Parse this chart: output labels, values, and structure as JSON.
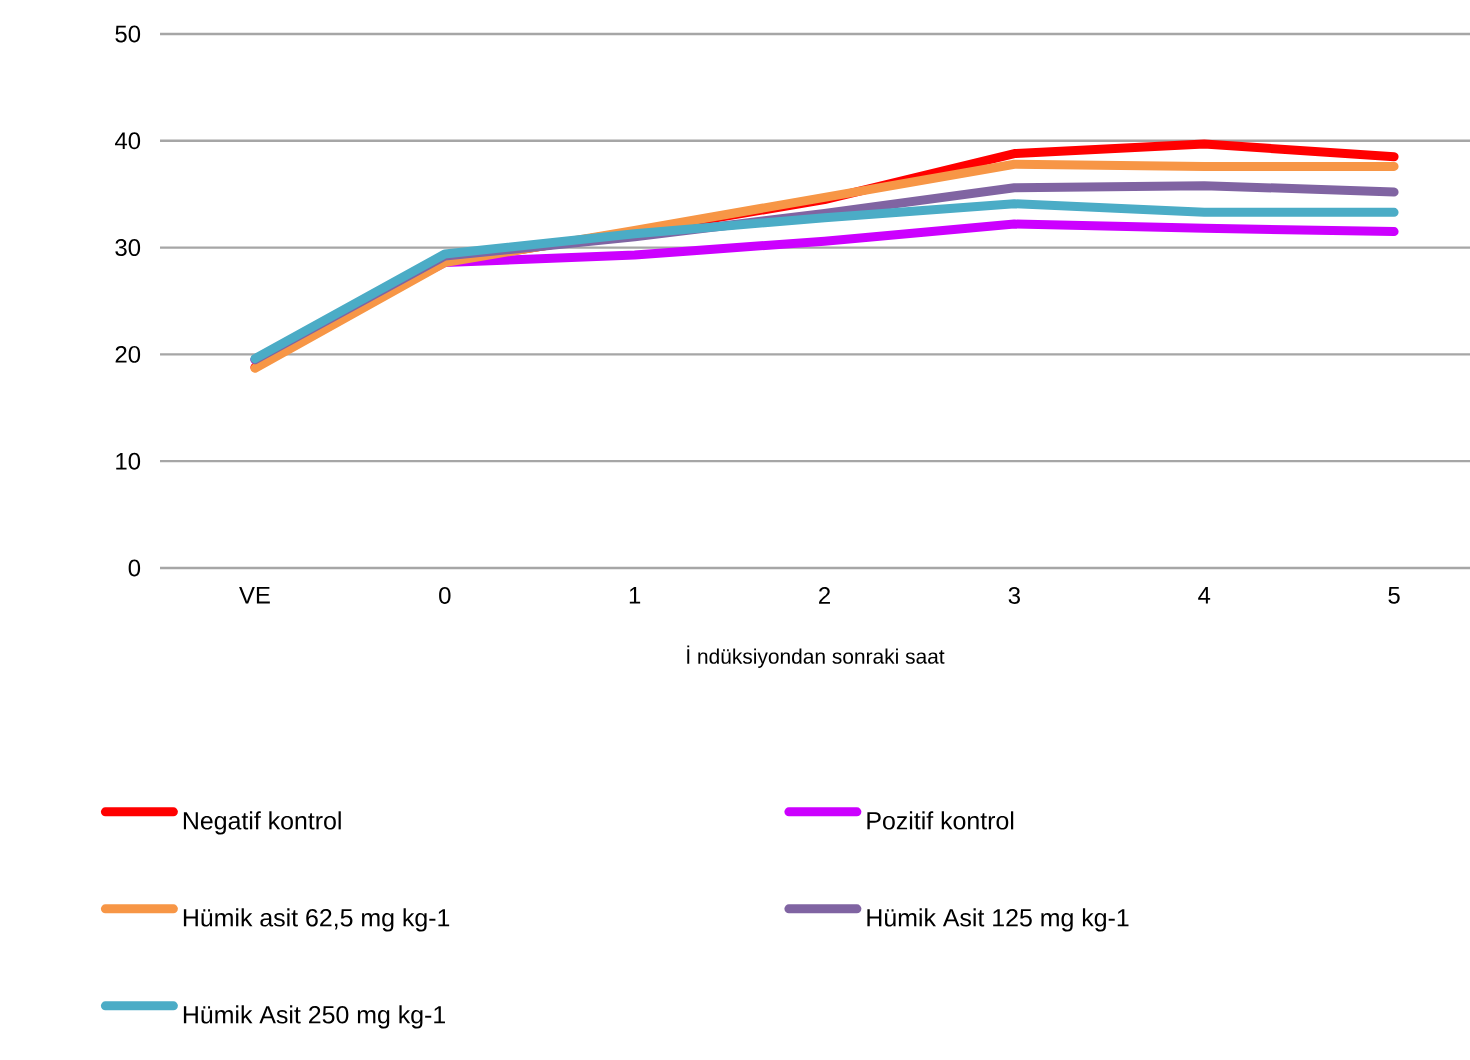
{
  "chart_data": {
    "type": "line",
    "xlabel": "İ ndüksiyondan sonraki saat",
    "categories": [
      "VE",
      "0",
      "1",
      "2",
      "3",
      "4",
      "5"
    ],
    "ylim": [
      0,
      50
    ],
    "yticks": [
      0,
      10,
      20,
      30,
      40,
      50
    ],
    "grid": "y",
    "legend": "bottom",
    "marker": "none",
    "line_style": "solid",
    "series": [
      {
        "name": "Negatif kontrol",
        "color": "#ff0000",
        "values": [
          18.8,
          28.7,
          31.5,
          34.5,
          38.8,
          39.7,
          38.5
        ]
      },
      {
        "name": "Pozitif kontrol",
        "color": "#cc00ff",
        "values": [
          19.5,
          28.6,
          29.3,
          30.6,
          32.2,
          31.8,
          31.5
        ]
      },
      {
        "name": "Hümik asit 62,5 mg kg-1",
        "color": "#f79646",
        "values": [
          18.7,
          28.6,
          31.6,
          34.7,
          37.8,
          37.6,
          37.6
        ]
      },
      {
        "name": "Hümik Asit 125 mg kg-1",
        "color": "#8064a2",
        "values": [
          19.5,
          29.2,
          31.0,
          33.2,
          35.6,
          35.8,
          35.2
        ]
      },
      {
        "name": "Hümik Asit 250 mg kg-1",
        "color": "#4bacc6",
        "values": [
          19.6,
          29.4,
          31.3,
          32.8,
          34.1,
          33.3,
          33.3
        ]
      }
    ]
  }
}
